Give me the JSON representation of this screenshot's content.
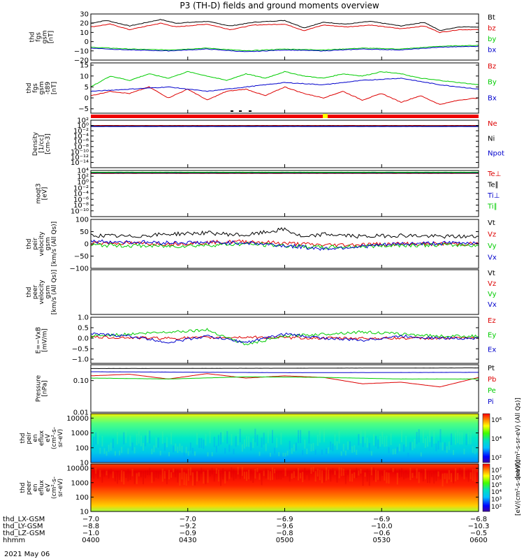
{
  "figure": {
    "title": "P3 (TH-D) fields and ground moments overview",
    "date": "2021 May 06",
    "colors": {
      "black": "#000000",
      "red": "#dd0000",
      "green": "#00cc00",
      "blue": "#0000cc",
      "yellow": "#ffff00"
    }
  },
  "chart_data": [
    {
      "type": "line",
      "id": "fgs",
      "ylabel": [
        "thd",
        "fgs",
        "gsm",
        "[nT]"
      ],
      "ylim": [
        -20,
        30
      ],
      "yticks": [
        "30",
        "20",
        "10",
        "0",
        "−10",
        "−20"
      ],
      "yticks_values": [
        30,
        20,
        10,
        0,
        -10,
        -20
      ],
      "series": [
        {
          "name": "Bt",
          "color": "#000000",
          "x": [
            0,
            0.04,
            0.1,
            0.18,
            0.22,
            0.3,
            0.36,
            0.42,
            0.5,
            0.55,
            0.6,
            0.66,
            0.72,
            0.8,
            0.86,
            0.9,
            0.95,
            1.0
          ],
          "values": [
            20,
            23,
            17,
            24,
            20,
            22,
            17,
            21,
            23,
            15,
            21,
            19,
            22,
            17,
            21,
            12,
            16,
            16
          ]
        },
        {
          "name": "bz",
          "color": "#dd0000",
          "x": [
            0,
            0.05,
            0.1,
            0.18,
            0.22,
            0.3,
            0.36,
            0.42,
            0.5,
            0.55,
            0.6,
            0.66,
            0.72,
            0.8,
            0.86,
            0.9,
            0.95,
            1.0
          ],
          "values": [
            16,
            19,
            13,
            20,
            16,
            19,
            13,
            18,
            19,
            12,
            18,
            16,
            18,
            14,
            17,
            10,
            13,
            13
          ]
        },
        {
          "name": "by",
          "color": "#00cc00",
          "x": [
            0,
            0.1,
            0.2,
            0.3,
            0.4,
            0.5,
            0.6,
            0.7,
            0.8,
            0.9,
            1.0
          ],
          "values": [
            -6,
            -8,
            -9,
            -7,
            -10,
            -8,
            -9,
            -7,
            -8,
            -5,
            -4
          ]
        },
        {
          "name": "bx",
          "color": "#0000cc",
          "x": [
            0,
            0.1,
            0.2,
            0.3,
            0.4,
            0.5,
            0.6,
            0.7,
            0.8,
            0.9,
            1.0
          ],
          "values": [
            -7,
            -9,
            -10,
            -8,
            -11,
            -9,
            -10,
            -8,
            -9,
            -6,
            -5
          ]
        }
      ]
    },
    {
      "type": "line",
      "id": "fgs-dsl",
      "ylabel": [
        "thd",
        "fgs",
        "gsm",
        "-t89",
        "[nT]"
      ],
      "ylim": [
        -7,
        16
      ],
      "yticks": [
        "15",
        "10",
        "5",
        "0",
        "−5"
      ],
      "yticks_values": [
        15,
        10,
        5,
        0,
        -5
      ],
      "series": [
        {
          "name": "Bz",
          "color": "#dd0000",
          "x": [
            0,
            0.05,
            0.1,
            0.15,
            0.2,
            0.25,
            0.3,
            0.35,
            0.4,
            0.45,
            0.5,
            0.55,
            0.6,
            0.65,
            0.7,
            0.75,
            0.8,
            0.85,
            0.9,
            0.95,
            1.0
          ],
          "values": [
            1,
            3,
            2,
            5,
            0,
            4,
            -1,
            3,
            4,
            1,
            5,
            2,
            0,
            3,
            -1,
            2,
            -2,
            1,
            -3,
            -1,
            0
          ]
        },
        {
          "name": "By",
          "color": "#00cc00",
          "x": [
            0,
            0.05,
            0.1,
            0.15,
            0.2,
            0.25,
            0.3,
            0.35,
            0.4,
            0.45,
            0.5,
            0.55,
            0.6,
            0.65,
            0.7,
            0.75,
            0.8,
            0.85,
            0.9,
            0.95,
            1.0
          ],
          "values": [
            5,
            10,
            8,
            11,
            9,
            12,
            10,
            8,
            11,
            9,
            12,
            10,
            9,
            11,
            10,
            12,
            11,
            9,
            8,
            7,
            6
          ]
        },
        {
          "name": "Bx",
          "color": "#0000cc",
          "x": [
            0,
            0.1,
            0.2,
            0.3,
            0.4,
            0.5,
            0.6,
            0.7,
            0.8,
            0.9,
            1.0
          ],
          "values": [
            3,
            4,
            5,
            3,
            5,
            7,
            6,
            8,
            9,
            6,
            4
          ]
        }
      ]
    },
    {
      "type": "line",
      "id": "density",
      "log": true,
      "ylabel": [
        "Density",
        "[1/cc]",
        "[cm-3]"
      ],
      "ylim": [
        -16,
        2
      ],
      "yticks": [
        "10²",
        "10⁰",
        "10⁻²",
        "10⁻⁴",
        "10⁻⁶",
        "10⁻⁸",
        "10⁻¹⁰",
        "10⁻¹²",
        "10⁻¹⁴"
      ],
      "yticks_values": [
        2,
        0,
        -2,
        -4,
        -6,
        -8,
        -10,
        -12,
        -14
      ],
      "series": [
        {
          "name": "Ne",
          "color": "#dd0000",
          "x": [
            0,
            1
          ],
          "values": [
            0,
            0
          ]
        },
        {
          "name": "Ni",
          "color": "#000000",
          "x": [
            0,
            1
          ],
          "values": [
            -0.2,
            -0.2
          ]
        },
        {
          "name": "Npot",
          "color": "#0000cc",
          "x": [
            0,
            1
          ],
          "values": [
            -0.4,
            -0.4
          ]
        }
      ]
    },
    {
      "type": "line",
      "id": "temp",
      "log": true,
      "ylabel": [
        "moqt3",
        "[eV]"
      ],
      "ylim": [
        -12,
        4
      ],
      "yticks": [
        "10⁴",
        "10²",
        "10⁰",
        "10⁻²",
        "10⁻⁴",
        "10⁻⁶",
        "10⁻⁸",
        "10⁻¹⁰"
      ],
      "yticks_values": [
        4,
        2,
        0,
        -2,
        -4,
        -6,
        -8,
        -10
      ],
      "series": [
        {
          "name": "Te⊥",
          "color": "#dd0000",
          "x": [
            0,
            1
          ],
          "values": [
            3.0,
            3.0
          ]
        },
        {
          "name": "Te∥",
          "color": "#000000",
          "x": [
            0,
            1
          ],
          "values": [
            3.1,
            3.1
          ]
        },
        {
          "name": "Ti⊥",
          "color": "#0000cc",
          "x": [
            0,
            1
          ],
          "values": [
            3.3,
            3.3
          ]
        },
        {
          "name": "Ti∥",
          "color": "#00cc00",
          "x": [
            0,
            1
          ],
          "values": [
            3.4,
            3.4
          ]
        }
      ]
    },
    {
      "type": "line",
      "id": "peir-vel",
      "ylabel": [
        "thd",
        "peir",
        "velocity",
        "gsm",
        "[km/s (All Qs)]"
      ],
      "ylim": [
        -100,
        100
      ],
      "yticks": [
        "100",
        "50",
        "0",
        "−50",
        "−100"
      ],
      "yticks_values": [
        100,
        50,
        0,
        -50,
        -100
      ],
      "series": [
        {
          "name": "Vt",
          "color": "#000000",
          "x": [
            0,
            0.1,
            0.2,
            0.3,
            0.4,
            0.5,
            0.55,
            0.6,
            0.7,
            0.8,
            0.9,
            1.0
          ],
          "values": [
            35,
            30,
            40,
            45,
            35,
            60,
            25,
            40,
            30,
            35,
            30,
            30
          ]
        },
        {
          "name": "Vz",
          "color": "#dd0000",
          "x": [
            0,
            0.2,
            0.4,
            0.6,
            0.8,
            1.0
          ],
          "values": [
            5,
            0,
            10,
            -5,
            0,
            0
          ]
        },
        {
          "name": "Vy",
          "color": "#00cc00",
          "x": [
            0,
            0.2,
            0.4,
            0.6,
            0.8,
            1.0
          ],
          "values": [
            -5,
            -10,
            0,
            -15,
            -5,
            -5
          ]
        },
        {
          "name": "Vx",
          "color": "#0000cc",
          "x": [
            0,
            0.2,
            0.4,
            0.6,
            0.8,
            1.0
          ],
          "values": [
            10,
            5,
            5,
            -20,
            0,
            5
          ]
        }
      ]
    },
    {
      "type": "line",
      "id": "peer-vel",
      "ylabel": [
        "thd",
        "peer",
        "velocity",
        "gsm",
        "[km/s (All Qs)]"
      ],
      "ylim": [
        -100,
        100
      ],
      "yticks": [],
      "yticks_values": [],
      "series": [
        {
          "name": "Vt",
          "color": "#000000",
          "x": [],
          "values": []
        },
        {
          "name": "Vz",
          "color": "#dd0000",
          "x": [],
          "values": []
        },
        {
          "name": "Vy",
          "color": "#00cc00",
          "x": [],
          "values": []
        },
        {
          "name": "Vx",
          "color": "#0000cc",
          "x": [],
          "values": []
        }
      ]
    },
    {
      "type": "line",
      "id": "efield",
      "ylabel": [
        "E=−VxB",
        "[mV/m]"
      ],
      "ylim": [
        -1.2,
        1.0
      ],
      "yticks": [
        "1.0",
        "0.5",
        "0.0",
        "−0.5",
        "−1.0"
      ],
      "yticks_values": [
        1.0,
        0.5,
        0.0,
        -0.5,
        -1.0
      ],
      "series": [
        {
          "name": "Ez",
          "color": "#dd0000",
          "x": [
            0,
            0.2,
            0.4,
            0.6,
            0.8,
            1.0
          ],
          "values": [
            0.05,
            0.0,
            0.05,
            0.0,
            0.0,
            0.0
          ]
        },
        {
          "name": "Ey",
          "color": "#00cc00",
          "x": [
            0,
            0.1,
            0.2,
            0.3,
            0.4,
            0.5,
            0.6,
            0.7,
            0.8,
            0.9,
            1.0
          ],
          "values": [
            0.1,
            0.2,
            0.3,
            0.4,
            -0.3,
            0.1,
            0.2,
            0.3,
            0.2,
            0.1,
            0.1
          ]
        },
        {
          "name": "Ex",
          "color": "#0000cc",
          "x": [
            0,
            0.1,
            0.2,
            0.3,
            0.4,
            0.5,
            0.6,
            0.7,
            0.8,
            0.9,
            1.0
          ],
          "values": [
            0.2,
            0.1,
            -0.2,
            0.1,
            -0.2,
            0.2,
            0.0,
            -0.1,
            0.1,
            0.0,
            0.0
          ]
        }
      ]
    },
    {
      "type": "line",
      "id": "pressure",
      "log": true,
      "ylabel": [
        "Pressure",
        "[nPa]"
      ],
      "ylim": [
        -2,
        -0.5
      ],
      "yticks": [
        "0.10",
        "0.01"
      ],
      "yticks_values": [
        -1,
        -2
      ],
      "series": [
        {
          "name": "Pt",
          "color": "#000000",
          "x": [
            0,
            1
          ],
          "values": [
            -0.62,
            -0.6
          ]
        },
        {
          "name": "Pb",
          "color": "#dd0000",
          "x": [
            0,
            0.1,
            0.2,
            0.3,
            0.4,
            0.5,
            0.6,
            0.7,
            0.8,
            0.9,
            1.0
          ],
          "values": [
            -0.85,
            -0.8,
            -0.95,
            -0.78,
            -0.92,
            -0.85,
            -0.9,
            -1.1,
            -1.05,
            -1.2,
            -0.9
          ]
        },
        {
          "name": "Pe",
          "color": "#00cc00",
          "x": [
            0,
            0.2,
            0.4,
            0.6,
            0.8,
            1.0
          ],
          "values": [
            -0.92,
            -0.95,
            -0.88,
            -0.9,
            -0.95,
            -0.95
          ]
        },
        {
          "name": "Pi",
          "color": "#0000cc",
          "x": [
            0,
            0.5,
            1.0
          ],
          "values": [
            -0.72,
            -0.75,
            -0.74
          ]
        }
      ]
    },
    {
      "type": "heatmap",
      "id": "peir-spec",
      "log": true,
      "ylabel": [
        "thd",
        "peir",
        "en",
        "eflux",
        "eV",
        "(cm²-s-",
        "sr-eV)"
      ],
      "ylim": [
        1,
        4.3
      ],
      "yticks": [
        "10000",
        "1000",
        "100",
        "10"
      ],
      "yticks_values": [
        4,
        3,
        2,
        1
      ],
      "colorbar_label": "[eV/(cm²-s-sr-eV) (All Qs)]",
      "colorbar_ticks": [
        "10⁶",
        "10⁴",
        "10²"
      ]
    },
    {
      "type": "heatmap",
      "id": "peer-spec",
      "log": true,
      "ylabel": [
        "thd",
        "peer",
        "en",
        "eflux",
        "eV",
        "(cm²-s-",
        "sr-eV)"
      ],
      "ylim": [
        1,
        4.3
      ],
      "yticks": [
        "10000",
        "1000",
        "100",
        "10"
      ],
      "yticks_values": [
        4,
        3,
        2,
        1
      ],
      "colorbar_label": "[eV/(cm²-s-sr-eV)]",
      "colorbar_ticks": [
        "10⁷",
        "10⁶",
        "10⁵",
        "10⁴",
        "10³",
        "10²"
      ]
    }
  ],
  "xaxis": {
    "rows": [
      {
        "label": "thd_LX-GSM",
        "values": [
          "−7.0",
          "−7.0",
          "−6.9",
          "−6.9",
          "−6.8"
        ]
      },
      {
        "label": "thd_LY-GSM",
        "values": [
          "−8.8",
          "−9.2",
          "−9.6",
          "−10.0",
          "−10.3"
        ]
      },
      {
        "label": "thd_LZ-GSM",
        "values": [
          "−1.0",
          "−0.9",
          "−0.8",
          "−0.6",
          "−0.5"
        ]
      },
      {
        "label": "hhmm",
        "values": [
          "0400",
          "0430",
          "0500",
          "0530",
          "0600"
        ]
      }
    ]
  }
}
